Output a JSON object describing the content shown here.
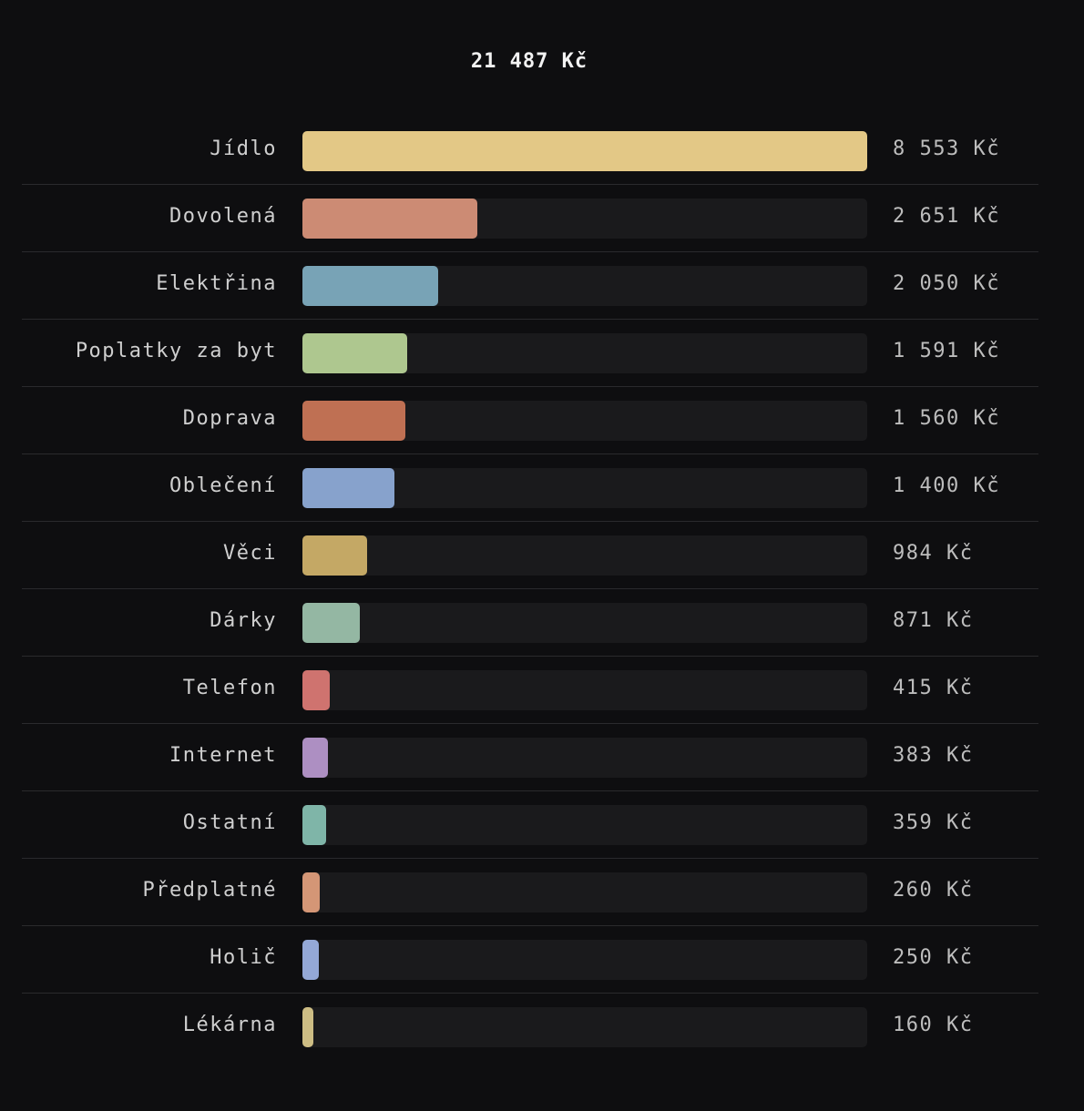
{
  "chart_data": {
    "type": "bar",
    "orientation": "horizontal",
    "title": "21 487 Kč",
    "categories": [
      "Jídlo",
      "Dovolená",
      "Elektřina",
      "Poplatky za byt",
      "Doprava",
      "Oblečení",
      "Věci",
      "Dárky",
      "Telefon",
      "Internet",
      "Ostatní",
      "Předplatné",
      "Holič",
      "Lékárna"
    ],
    "values": [
      8553,
      2651,
      2050,
      1591,
      1560,
      1400,
      984,
      871,
      415,
      383,
      359,
      260,
      250,
      160
    ],
    "value_labels": [
      "8 553 Kč",
      "2 651 Kč",
      "2 050 Kč",
      "1 591 Kč",
      "1 560 Kč",
      "1 400 Kč",
      "984 Kč",
      "871 Kč",
      "415 Kč",
      "383 Kč",
      "359 Kč",
      "260 Kč",
      "250 Kč",
      "160 Kč"
    ],
    "colors": [
      "#e3c886",
      "#cc8b74",
      "#78a3b6",
      "#aec78f",
      "#bf7053",
      "#87a2cc",
      "#c4a865",
      "#94b7a3",
      "#cf736f",
      "#ad8fc2",
      "#7fb5a8",
      "#d49676",
      "#94a8d6",
      "#cdbd84"
    ],
    "xlim": [
      0,
      8553
    ],
    "grid": false,
    "legend": "none"
  }
}
